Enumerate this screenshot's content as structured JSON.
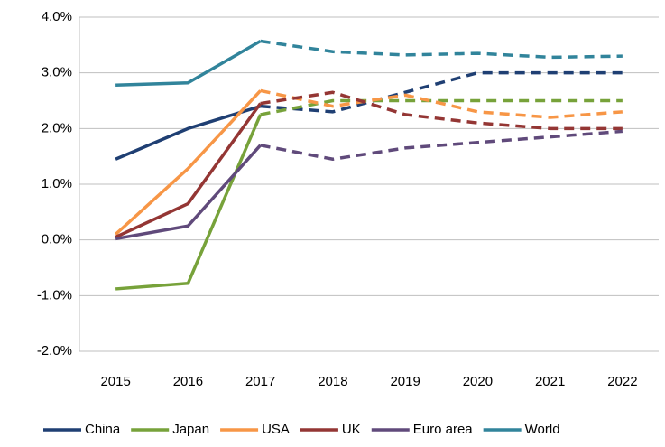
{
  "chart_data": {
    "type": "line",
    "categories": [
      "2015",
      "2016",
      "2017",
      "2018",
      "2019",
      "2020",
      "2021",
      "2022"
    ],
    "series": [
      {
        "name": "China",
        "color": "#1f3f73",
        "values": [
          1.45,
          2.0,
          2.4,
          2.3,
          2.65,
          3.0,
          3.0,
          3.0
        ]
      },
      {
        "name": "Japan",
        "color": "#77a23a",
        "values": [
          -0.88,
          -0.78,
          2.25,
          2.5,
          2.5,
          2.5,
          2.5,
          2.5
        ]
      },
      {
        "name": "USA",
        "color": "#f79646",
        "values": [
          0.1,
          1.28,
          2.68,
          2.4,
          2.6,
          2.3,
          2.2,
          2.3
        ]
      },
      {
        "name": "UK",
        "color": "#943634",
        "values": [
          0.05,
          0.65,
          2.45,
          2.65,
          2.25,
          2.1,
          2.0,
          2.0
        ]
      },
      {
        "name": "Euro area",
        "color": "#604a7b",
        "values": [
          0.02,
          0.25,
          1.7,
          1.45,
          1.65,
          1.75,
          1.85,
          1.95
        ]
      },
      {
        "name": "World",
        "color": "#31849b",
        "values": [
          2.78,
          2.82,
          3.57,
          3.38,
          3.32,
          3.35,
          3.28,
          3.3
        ]
      }
    ],
    "dashed_from": 2,
    "ylim": [
      -2,
      4
    ],
    "yticks": [
      {
        "value": -2,
        "label": "-2.0%"
      },
      {
        "value": -1,
        "label": "-1.0%"
      },
      {
        "value": 0,
        "label": "0.0%"
      },
      {
        "value": 1,
        "label": "1.0%"
      },
      {
        "value": 2,
        "label": "2.0%"
      },
      {
        "value": 3,
        "label": "3.0%"
      },
      {
        "value": 4,
        "label": "4.0%"
      }
    ],
    "grid": true,
    "legend": "bottom"
  }
}
